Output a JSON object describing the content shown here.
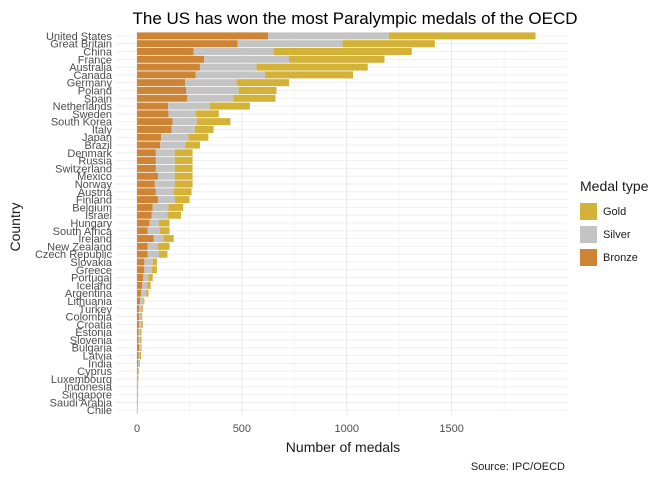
{
  "chart_data": {
    "type": "bar",
    "orientation": "horizontal",
    "stacked": true,
    "title": "The US has won the most Paralympic medals of the OECD",
    "xlabel": "Number of medals",
    "ylabel": "Country",
    "caption": "Source: IPC/OECD",
    "xlim": [
      0,
      1950
    ],
    "xticks": [
      0,
      500,
      1000,
      1500
    ],
    "grid": true,
    "legend_title": "Medal type",
    "legend_position": "right",
    "series": [
      {
        "name": "Gold",
        "color": "#d4b137"
      },
      {
        "name": "Silver",
        "color": "#c4c4c4"
      },
      {
        "name": "Bronze",
        "color": "#cd8434"
      }
    ],
    "categories": [
      "United States",
      "Great Britain",
      "China",
      "France",
      "Australia",
      "Canada",
      "Germany",
      "Poland",
      "Spain",
      "Netherlands",
      "Sweden",
      "South Korea",
      "Italy",
      "Japan",
      "Brazil",
      "Denmark",
      "Russia",
      "Switzerland",
      "Mexico",
      "Norway",
      "Austria",
      "Finland",
      "Belgium",
      "Israel",
      "Hungary",
      "South Africa",
      "Ireland",
      "New Zealand",
      "Czech Republic",
      "Slovakia",
      "Greece",
      "Portugal",
      "Iceland",
      "Argentina",
      "Lithuania",
      "Turkey",
      "Colombia",
      "Croatia",
      "Estonia",
      "Slovenia",
      "Bulgaria",
      "Latvia",
      "India",
      "Cyprus",
      "Luxembourg",
      "Indonesia",
      "Singapore",
      "Saudi Arabia",
      "Chile"
    ],
    "bronze": [
      625,
      480,
      270,
      320,
      300,
      280,
      230,
      235,
      240,
      148,
      150,
      170,
      165,
      115,
      110,
      90,
      90,
      90,
      100,
      85,
      90,
      100,
      75,
      70,
      60,
      50,
      80,
      50,
      50,
      35,
      35,
      30,
      25,
      20,
      15,
      10,
      10,
      10,
      8,
      8,
      10,
      8,
      5,
      4,
      3,
      2,
      2,
      2,
      1
    ],
    "silver": [
      575,
      500,
      380,
      405,
      270,
      330,
      245,
      250,
      220,
      200,
      130,
      115,
      110,
      130,
      120,
      90,
      90,
      90,
      80,
      95,
      85,
      80,
      75,
      75,
      45,
      60,
      45,
      50,
      55,
      40,
      35,
      25,
      25,
      25,
      15,
      12,
      10,
      10,
      8,
      8,
      8,
      6,
      5,
      3,
      2,
      2,
      2,
      1,
      1
    ],
    "gold": [
      700,
      440,
      660,
      455,
      530,
      420,
      250,
      180,
      200,
      190,
      110,
      160,
      90,
      95,
      70,
      85,
      85,
      85,
      85,
      85,
      85,
      70,
      70,
      65,
      50,
      45,
      50,
      55,
      40,
      20,
      25,
      20,
      15,
      10,
      5,
      6,
      5,
      8,
      6,
      6,
      4,
      5,
      4,
      2,
      1,
      1,
      1,
      1,
      1
    ]
  }
}
